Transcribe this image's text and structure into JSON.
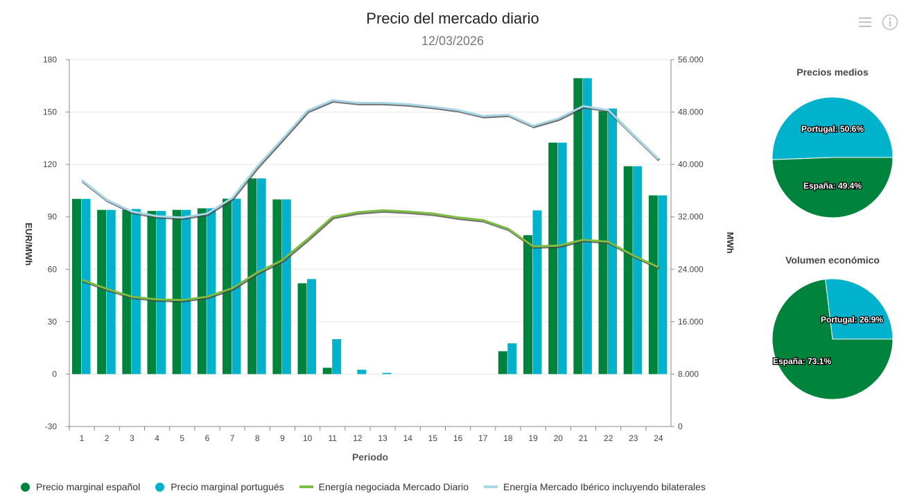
{
  "header": {
    "title": "Precio del mercado diario",
    "subtitle": "12/03/2026",
    "menu_icon": "hamburger-menu-icon",
    "info_icon": "info-icon"
  },
  "colors": {
    "spain": "#00843d",
    "portugal": "#00b2cc",
    "energia": "#7cbd42",
    "bilateral": "#a9d7e6"
  },
  "chart_data": [
    {
      "type": "bar+line",
      "xlabel": "Periodo",
      "ylabel": "EUR/MWh",
      "ylabel_right": "MWh",
      "ylim": [
        -30,
        180
      ],
      "yticks": [
        "-30",
        "0",
        "30",
        "60",
        "90",
        "120",
        "150",
        "180"
      ],
      "ylim_right": [
        0,
        56000
      ],
      "yticks_right": [
        "0",
        "8.000",
        "16.000",
        "24.000",
        "32.000",
        "40.000",
        "48.000",
        "56.000"
      ],
      "grid": true,
      "legend": "bottom",
      "categories": [
        "1",
        "2",
        "3",
        "4",
        "5",
        "6",
        "7",
        "8",
        "9",
        "10",
        "11",
        "12",
        "13",
        "14",
        "15",
        "16",
        "17",
        "18",
        "19",
        "20",
        "21",
        "22",
        "23",
        "24"
      ],
      "series": [
        {
          "name": "Precio marginal español",
          "type": "bar",
          "axis": "left",
          "values": [
            100.3,
            94,
            94,
            93.4,
            94,
            94.9,
            100.4,
            112,
            100,
            52,
            3.6,
            0,
            0,
            0,
            0,
            0,
            0,
            13.1,
            79.5,
            132.5,
            169.4,
            150.5,
            119,
            102.3
          ]
        },
        {
          "name": "Precio marginal portugués",
          "type": "bar",
          "axis": "left",
          "values": [
            100.3,
            94,
            94.5,
            93.4,
            94,
            94.9,
            100.4,
            112,
            100,
            54.4,
            20,
            2.5,
            0.7,
            0,
            0,
            0,
            0,
            17.6,
            93.7,
            132.5,
            169.4,
            152,
            119,
            102.3
          ]
        },
        {
          "name": "Energía negociada Mercado Diario",
          "type": "line",
          "axis": "right",
          "values": [
            22400,
            21000,
            19800,
            19400,
            19300,
            19800,
            21100,
            23500,
            25400,
            28600,
            32000,
            32700,
            33000,
            32800,
            32500,
            31900,
            31500,
            30200,
            27500,
            27600,
            28500,
            28200,
            26100,
            24300
          ]
        },
        {
          "name": "Energía Mercado Ibérico incluyendo bilaterales",
          "type": "line",
          "axis": "right",
          "values": [
            37600,
            34600,
            32800,
            32100,
            31900,
            32500,
            34900,
            39700,
            43900,
            48200,
            49800,
            49400,
            49400,
            49200,
            48800,
            48300,
            47400,
            47600,
            45900,
            47000,
            48900,
            48300,
            44500,
            40800
          ]
        }
      ]
    },
    {
      "type": "pie",
      "title": "Precios medios",
      "slices": [
        {
          "label": "Portugal: 50.6%",
          "name": "Portugal",
          "value": 50.6
        },
        {
          "label": "España: 49.4%",
          "name": "España",
          "value": 49.4
        }
      ]
    },
    {
      "type": "pie",
      "title": "Volumen económico",
      "slices": [
        {
          "label": "Portugal: 26.9%",
          "name": "Portugal",
          "value": 26.9
        },
        {
          "label": "España: 73.1%",
          "name": "España",
          "value": 73.1
        }
      ]
    }
  ]
}
